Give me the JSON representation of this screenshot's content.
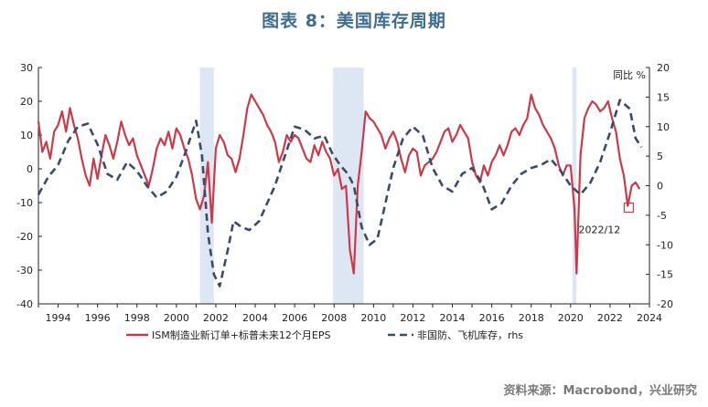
{
  "title": "图表 8：美国库存周期",
  "source": "资料来源：Macrobond，兴业研究",
  "chart_data": {
    "type": "line",
    "x_axis": {
      "range": [
        1993,
        2024
      ],
      "ticks": [
        "1994",
        "1996",
        "1998",
        "2000",
        "2002",
        "2004",
        "2006",
        "2008",
        "2010",
        "2012",
        "2014",
        "2016",
        "2018",
        "2020",
        "2022",
        "2024"
      ]
    },
    "y_left": {
      "range": [
        -40,
        30
      ],
      "ticks": [
        "30",
        "20",
        "10",
        "0",
        "-10",
        "-20",
        "-30",
        "-40"
      ]
    },
    "y_right": {
      "label": "同比 %",
      "range": [
        -20,
        20
      ],
      "ticks": [
        "20",
        "15",
        "10",
        "5",
        "0",
        "-5",
        "-10",
        "-15",
        "-20"
      ]
    },
    "recessions": [
      [
        2001.2,
        2001.9
      ],
      [
        2007.95,
        2009.5
      ],
      [
        2020.1,
        2020.3
      ]
    ],
    "annotation": {
      "text": "2022/12",
      "x": 2022.95,
      "y": -11.5
    },
    "series": [
      {
        "name": "ISM制造业新订单+标普未来12个月EPS",
        "axis": "left",
        "color": "#cc3a4a",
        "style": "solid",
        "points": [
          [
            1993.0,
            14
          ],
          [
            1993.2,
            5
          ],
          [
            1993.4,
            8
          ],
          [
            1993.6,
            3
          ],
          [
            1993.8,
            11
          ],
          [
            1994.0,
            13
          ],
          [
            1994.2,
            17
          ],
          [
            1994.4,
            11
          ],
          [
            1994.6,
            18
          ],
          [
            1994.8,
            13
          ],
          [
            1995.0,
            9
          ],
          [
            1995.2,
            3
          ],
          [
            1995.4,
            -2
          ],
          [
            1995.6,
            -5
          ],
          [
            1995.8,
            3
          ],
          [
            1996.0,
            -3
          ],
          [
            1996.2,
            4
          ],
          [
            1996.4,
            10
          ],
          [
            1996.6,
            7
          ],
          [
            1996.8,
            3
          ],
          [
            1997.0,
            8
          ],
          [
            1997.2,
            14
          ],
          [
            1997.4,
            10
          ],
          [
            1997.6,
            7
          ],
          [
            1997.8,
            9
          ],
          [
            1998.0,
            4
          ],
          [
            1998.2,
            1
          ],
          [
            1998.4,
            -2
          ],
          [
            1998.6,
            -5
          ],
          [
            1998.8,
            0
          ],
          [
            1999.0,
            6
          ],
          [
            1999.2,
            9
          ],
          [
            1999.4,
            7
          ],
          [
            1999.6,
            11
          ],
          [
            1999.8,
            6
          ],
          [
            2000.0,
            12
          ],
          [
            2000.2,
            10
          ],
          [
            2000.4,
            6
          ],
          [
            2000.6,
            3
          ],
          [
            2000.8,
            -2
          ],
          [
            2001.0,
            -9
          ],
          [
            2001.2,
            -12
          ],
          [
            2001.4,
            -8
          ],
          [
            2001.6,
            2
          ],
          [
            2001.8,
            -16
          ],
          [
            2002.0,
            6
          ],
          [
            2002.2,
            10
          ],
          [
            2002.4,
            8
          ],
          [
            2002.6,
            4
          ],
          [
            2002.8,
            3
          ],
          [
            2003.0,
            -1
          ],
          [
            2003.2,
            3
          ],
          [
            2003.4,
            10
          ],
          [
            2003.6,
            18
          ],
          [
            2003.8,
            22
          ],
          [
            2004.0,
            20
          ],
          [
            2004.2,
            18
          ],
          [
            2004.4,
            16
          ],
          [
            2004.6,
            13
          ],
          [
            2004.8,
            11
          ],
          [
            2005.0,
            8
          ],
          [
            2005.2,
            2
          ],
          [
            2005.4,
            5
          ],
          [
            2005.6,
            10
          ],
          [
            2005.8,
            8
          ],
          [
            2006.0,
            10
          ],
          [
            2006.2,
            9
          ],
          [
            2006.4,
            6
          ],
          [
            2006.6,
            3
          ],
          [
            2006.8,
            2
          ],
          [
            2007.0,
            7
          ],
          [
            2007.2,
            4
          ],
          [
            2007.4,
            8
          ],
          [
            2007.6,
            5
          ],
          [
            2007.8,
            3
          ],
          [
            2008.0,
            -2
          ],
          [
            2008.2,
            0
          ],
          [
            2008.4,
            -6
          ],
          [
            2008.6,
            -5
          ],
          [
            2008.8,
            -24
          ],
          [
            2009.0,
            -31
          ],
          [
            2009.2,
            -5
          ],
          [
            2009.4,
            5
          ],
          [
            2009.6,
            17
          ],
          [
            2009.8,
            15
          ],
          [
            2010.0,
            14
          ],
          [
            2010.2,
            12
          ],
          [
            2010.4,
            10
          ],
          [
            2010.6,
            6
          ],
          [
            2010.8,
            9
          ],
          [
            2011.0,
            11
          ],
          [
            2011.2,
            8
          ],
          [
            2011.4,
            3
          ],
          [
            2011.6,
            -1
          ],
          [
            2011.8,
            4
          ],
          [
            2012.0,
            6
          ],
          [
            2012.2,
            5
          ],
          [
            2012.4,
            -2
          ],
          [
            2012.6,
            1
          ],
          [
            2012.8,
            2
          ],
          [
            2013.0,
            3
          ],
          [
            2013.2,
            5
          ],
          [
            2013.4,
            8
          ],
          [
            2013.6,
            11
          ],
          [
            2013.8,
            12
          ],
          [
            2014.0,
            8
          ],
          [
            2014.2,
            10
          ],
          [
            2014.4,
            13
          ],
          [
            2014.6,
            11
          ],
          [
            2014.8,
            9
          ],
          [
            2015.0,
            2
          ],
          [
            2015.2,
            -2
          ],
          [
            2015.4,
            -4
          ],
          [
            2015.6,
            1
          ],
          [
            2015.8,
            -2
          ],
          [
            2016.0,
            2
          ],
          [
            2016.2,
            4
          ],
          [
            2016.4,
            7
          ],
          [
            2016.6,
            4
          ],
          [
            2016.8,
            7
          ],
          [
            2017.0,
            11
          ],
          [
            2017.2,
            12
          ],
          [
            2017.4,
            10
          ],
          [
            2017.6,
            13
          ],
          [
            2017.8,
            15
          ],
          [
            2018.0,
            22
          ],
          [
            2018.2,
            18
          ],
          [
            2018.4,
            16
          ],
          [
            2018.6,
            13
          ],
          [
            2018.8,
            11
          ],
          [
            2019.0,
            9
          ],
          [
            2019.2,
            6
          ],
          [
            2019.4,
            1
          ],
          [
            2019.6,
            -2
          ],
          [
            2019.8,
            1
          ],
          [
            2020.0,
            1
          ],
          [
            2020.2,
            -12
          ],
          [
            2020.3,
            -31
          ],
          [
            2020.5,
            4
          ],
          [
            2020.7,
            15
          ],
          [
            2020.9,
            18
          ],
          [
            2021.1,
            20
          ],
          [
            2021.3,
            19
          ],
          [
            2021.5,
            17
          ],
          [
            2021.7,
            18
          ],
          [
            2021.9,
            20
          ],
          [
            2022.1,
            15
          ],
          [
            2022.3,
            11
          ],
          [
            2022.5,
            3
          ],
          [
            2022.7,
            -2
          ],
          [
            2022.9,
            -11
          ],
          [
            2023.1,
            -5
          ],
          [
            2023.3,
            -4
          ],
          [
            2023.5,
            -6
          ]
        ]
      },
      {
        "name": "非国防、飞机库存，rhs",
        "axis": "right",
        "color": "#3b4a6b",
        "style": "dashed",
        "points": [
          [
            1993.0,
            -1.5
          ],
          [
            1993.5,
            1.5
          ],
          [
            1994.0,
            3.5
          ],
          [
            1994.5,
            7.5
          ],
          [
            1995.0,
            10.0
          ],
          [
            1995.5,
            10.5
          ],
          [
            1996.0,
            7.0
          ],
          [
            1996.5,
            2.0
          ],
          [
            1997.0,
            1.0
          ],
          [
            1997.5,
            4.0
          ],
          [
            1998.0,
            2.5
          ],
          [
            1998.5,
            0.0
          ],
          [
            1999.0,
            -2.0
          ],
          [
            1999.5,
            -1.0
          ],
          [
            2000.0,
            1.5
          ],
          [
            2000.5,
            6.0
          ],
          [
            2001.0,
            11.0
          ],
          [
            2001.3,
            5.0
          ],
          [
            2001.6,
            -8.0
          ],
          [
            2001.9,
            -15.0
          ],
          [
            2002.2,
            -17.0
          ],
          [
            2002.6,
            -11.0
          ],
          [
            2002.9,
            -6.0
          ],
          [
            2003.3,
            -7.0
          ],
          [
            2003.7,
            -7.5
          ],
          [
            2004.2,
            -6.0
          ],
          [
            2004.6,
            -3.0
          ],
          [
            2005.0,
            0.0
          ],
          [
            2005.5,
            5.0
          ],
          [
            2006.0,
            10.0
          ],
          [
            2006.5,
            9.5
          ],
          [
            2007.0,
            8.0
          ],
          [
            2007.5,
            8.5
          ],
          [
            2007.9,
            5.5
          ],
          [
            2008.3,
            3.5
          ],
          [
            2008.7,
            2.0
          ],
          [
            2009.0,
            0.0
          ],
          [
            2009.4,
            -7.0
          ],
          [
            2009.8,
            -10.0
          ],
          [
            2010.2,
            -9.0
          ],
          [
            2010.6,
            -3.0
          ],
          [
            2011.0,
            3.0
          ],
          [
            2011.5,
            8.0
          ],
          [
            2012.0,
            10.0
          ],
          [
            2012.5,
            8.5
          ],
          [
            2013.0,
            3.0
          ],
          [
            2013.5,
            0.0
          ],
          [
            2014.0,
            -1.0
          ],
          [
            2014.5,
            2.0
          ],
          [
            2015.0,
            3.0
          ],
          [
            2015.5,
            0.5
          ],
          [
            2016.0,
            -4.0
          ],
          [
            2016.5,
            -3.0
          ],
          [
            2017.0,
            0.0
          ],
          [
            2017.5,
            2.0
          ],
          [
            2018.0,
            3.0
          ],
          [
            2018.5,
            3.5
          ],
          [
            2019.0,
            4.5
          ],
          [
            2019.5,
            2.5
          ],
          [
            2020.0,
            0.0
          ],
          [
            2020.5,
            -1.5
          ],
          [
            2021.0,
            0.5
          ],
          [
            2021.5,
            4.0
          ],
          [
            2022.0,
            9.0
          ],
          [
            2022.5,
            14.5
          ],
          [
            2023.0,
            13.0
          ],
          [
            2023.3,
            8.0
          ],
          [
            2023.6,
            6.5
          ]
        ]
      }
    ]
  }
}
